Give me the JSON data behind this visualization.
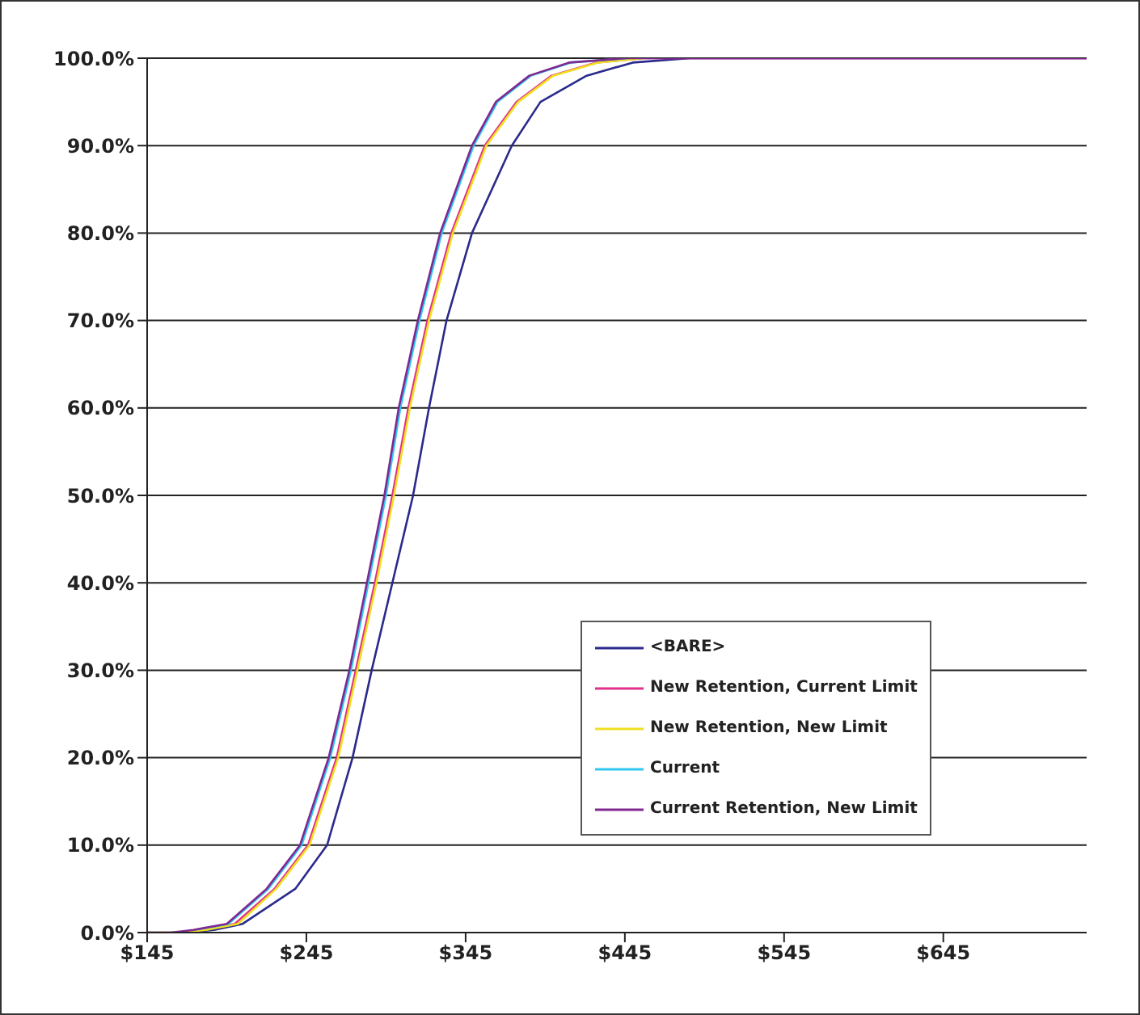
{
  "chart_data": {
    "type": "line",
    "xlim": [
      145,
      735
    ],
    "xticks": [
      {
        "value": 145,
        "label": "$145"
      },
      {
        "value": 245,
        "label": "$245"
      },
      {
        "value": 345,
        "label": "$345"
      },
      {
        "value": 445,
        "label": "$445"
      },
      {
        "value": 545,
        "label": "$545"
      },
      {
        "value": 645,
        "label": "$645"
      }
    ],
    "ylim": [
      0,
      100
    ],
    "yticks": [
      {
        "value": 0,
        "label": "0.0%"
      },
      {
        "value": 10,
        "label": "10.0%"
      },
      {
        "value": 20,
        "label": "20.0%"
      },
      {
        "value": 30,
        "label": "30.0%"
      },
      {
        "value": 40,
        "label": "40.0%"
      },
      {
        "value": 50,
        "label": "50.0%"
      },
      {
        "value": 60,
        "label": "60.0%"
      },
      {
        "value": 70,
        "label": "70.0%"
      },
      {
        "value": 80,
        "label": "80.0%"
      },
      {
        "value": 90,
        "label": "90.0%"
      },
      {
        "value": 100,
        "label": "100.0%"
      }
    ],
    "grid": "y",
    "legend": "bottom right",
    "marker": "none",
    "line_style": "solid",
    "series": [
      {
        "name": "<BARE>",
        "color": "#2a2a8c",
        "x": [
          145,
          170,
          187,
          205,
          238,
          258,
          274,
          286,
          299,
          312,
          322,
          333,
          349,
          374,
          392,
          421,
          450,
          486,
          735
        ],
        "values": [
          0,
          0,
          0.3,
          1,
          5,
          10,
          20,
          30,
          40,
          50,
          60,
          70,
          80,
          90,
          95,
          98,
          99.5,
          100,
          100
        ]
      },
      {
        "name": "New Retention, Current Limit",
        "color": "#e0308a",
        "x": [
          180,
          200,
          225,
          246,
          264,
          276,
          288,
          299,
          309,
          321,
          336,
          357,
          377,
          399,
          427,
          456,
          735
        ],
        "values": [
          0.3,
          1,
          5,
          10,
          20,
          30,
          40,
          50,
          60,
          70,
          80,
          90,
          95,
          98,
          99.5,
          100,
          100
        ]
      },
      {
        "name": "New Retention, New Limit",
        "color": "#f0e020",
        "x": [
          145,
          165,
          182,
          202,
          226,
          247,
          265,
          277,
          289,
          300,
          310,
          322,
          337,
          358,
          378,
          400,
          428,
          457
        ],
        "values": [
          0,
          0,
          0.3,
          1,
          5,
          10,
          20,
          30,
          40,
          50,
          60,
          70,
          80,
          90,
          95,
          98,
          99.5,
          100
        ]
      },
      {
        "name": "Current",
        "color": "#30c8f0",
        "x": [
          175,
          196,
          221,
          242,
          260,
          273,
          284,
          295,
          304,
          316,
          330,
          350,
          365,
          386,
          411,
          447
        ],
        "values": [
          0.3,
          1,
          5,
          10,
          20,
          30,
          40,
          50,
          60,
          70,
          80,
          90,
          95,
          98,
          99.5,
          100
        ]
      },
      {
        "name": "Current Retention, New Limit",
        "color": "#802890",
        "x": [
          145,
          160,
          174,
          195,
          220,
          241,
          259,
          272,
          283,
          294,
          303,
          315,
          329,
          349,
          364,
          385,
          410,
          446,
          735
        ],
        "values": [
          0,
          0,
          0.3,
          1,
          5,
          10,
          20,
          30,
          40,
          50,
          60,
          70,
          80,
          90,
          95,
          98,
          99.5,
          100,
          100
        ]
      }
    ]
  }
}
